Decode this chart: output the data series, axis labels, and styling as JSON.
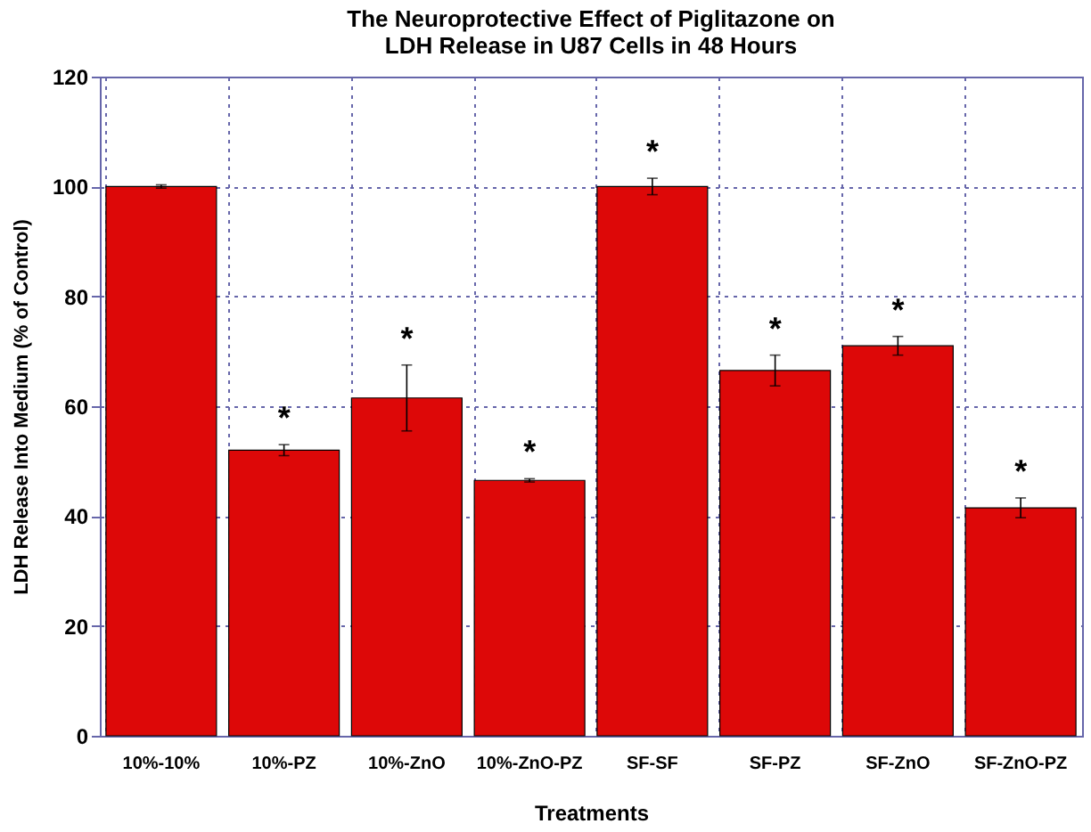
{
  "chart_data": {
    "type": "bar",
    "title": "The Neuroprotective Effect of Piglitazone on\nLDH Release in U87 Cells  in 48 Hours",
    "xlabel": "Treatments",
    "ylabel": "LDH Release Into Medium (% of Control)",
    "categories": [
      "10%-10%",
      "10%-PZ",
      "10%-ZnO",
      "10%-ZnO-PZ",
      "SF-SF",
      "SF-PZ",
      "SF-ZnO",
      "SF-ZnO-PZ"
    ],
    "values": [
      100,
      52,
      61.5,
      46.5,
      100,
      66.5,
      71,
      41.5
    ],
    "errors": [
      0.3,
      1,
      6,
      0.3,
      1.5,
      2.8,
      1.7,
      1.8
    ],
    "color": "#dd0808",
    "ylim": [
      0,
      120
    ],
    "yticks": [
      0,
      20,
      40,
      60,
      80,
      100,
      120
    ],
    "grid": true,
    "annotations": [
      {
        "text": "*",
        "x": "10%-PZ",
        "y": 53
      },
      {
        "text": "*",
        "x": "10%-ZnO",
        "y": 67.5
      },
      {
        "text": "*",
        "x": "10%-ZnO-PZ",
        "y": 46.8
      },
      {
        "text": "*",
        "x": "SF-SF",
        "y": 101.5
      },
      {
        "text": "*",
        "x": "SF-PZ",
        "y": 69.3
      },
      {
        "text": "*",
        "x": "SF-ZnO",
        "y": 72.7
      },
      {
        "text": "*",
        "x": "SF-ZnO-PZ",
        "y": 43.3
      }
    ]
  }
}
